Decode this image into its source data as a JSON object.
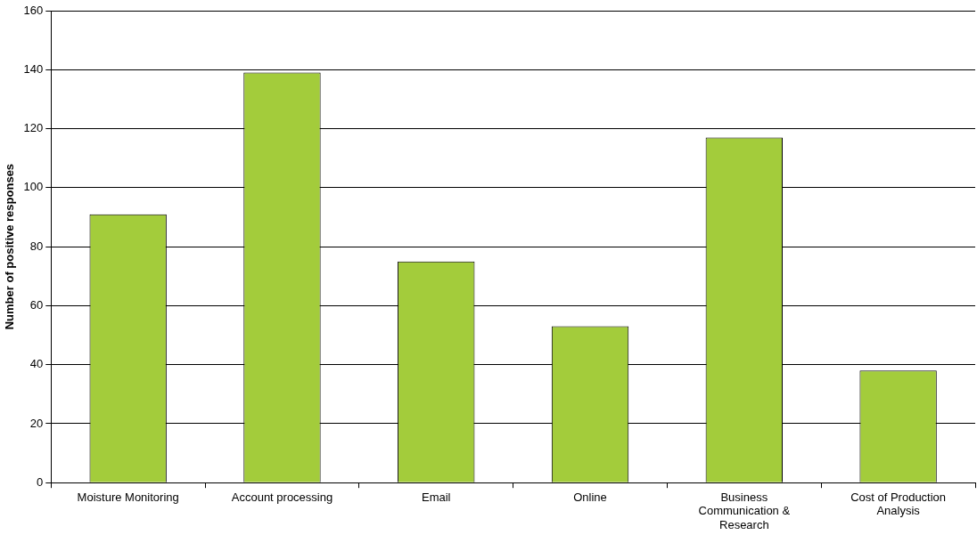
{
  "chart_data": {
    "type": "bar",
    "ylabel": "Number of positive responses",
    "categories": [
      "Moisture Monitoring",
      "Account processing",
      "Email",
      "Online",
      "Business Communication & Research",
      "Cost of Production Analysis"
    ],
    "values": [
      91,
      139,
      75,
      53,
      117,
      38
    ],
    "color": "#a3cc3b",
    "ylim": [
      0,
      160
    ],
    "yticks": [
      0,
      20,
      40,
      60,
      80,
      100,
      120,
      140,
      160
    ],
    "grid": "y"
  }
}
